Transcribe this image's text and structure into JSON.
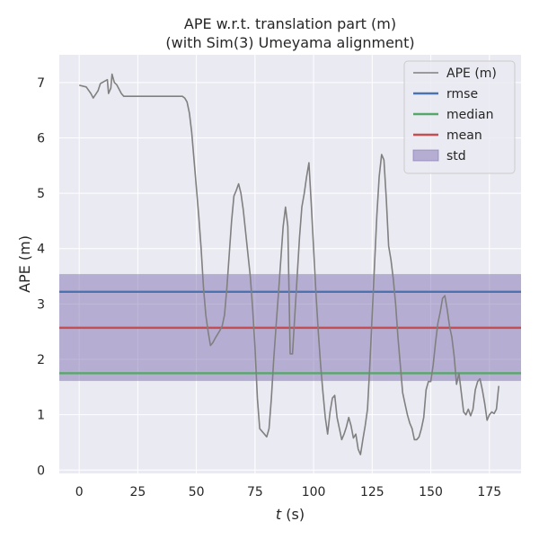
{
  "chart_data": {
    "type": "line",
    "title": [
      "APE w.r.t. translation part (m)",
      "(with Sim(3) Umeyama alignment)"
    ],
    "xlabel_var": "t",
    "xlabel_unit": " (s)",
    "ylabel": "APE (m)",
    "xlim": [
      -8.5,
      188.5
    ],
    "ylim": [
      -0.06,
      7.5
    ],
    "xticks": [
      0,
      25,
      50,
      75,
      100,
      125,
      150,
      175
    ],
    "yticks": [
      0,
      1,
      2,
      3,
      4,
      5,
      6,
      7
    ],
    "grid": true,
    "legend_position": "top-right",
    "series": [
      {
        "name": "APE (m)",
        "color": "#808080",
        "points": [
          [
            0,
            6.95
          ],
          [
            3,
            6.92
          ],
          [
            5,
            6.8
          ],
          [
            6,
            6.72
          ],
          [
            8,
            6.85
          ],
          [
            9,
            6.98
          ],
          [
            12,
            7.05
          ],
          [
            12.5,
            6.8
          ],
          [
            13.5,
            6.9
          ],
          [
            14,
            7.15
          ],
          [
            15,
            7.0
          ],
          [
            16,
            6.96
          ],
          [
            18,
            6.8
          ],
          [
            19,
            6.75
          ],
          [
            25,
            6.75
          ],
          [
            35,
            6.75
          ],
          [
            43,
            6.75
          ],
          [
            44,
            6.75
          ],
          [
            45,
            6.72
          ],
          [
            46,
            6.65
          ],
          [
            47,
            6.45
          ],
          [
            48,
            6.1
          ],
          [
            49,
            5.6
          ],
          [
            50,
            5.1
          ],
          [
            51,
            4.6
          ],
          [
            52,
            4.0
          ],
          [
            53,
            3.3
          ],
          [
            54,
            2.8
          ],
          [
            55,
            2.5
          ],
          [
            56,
            2.25
          ],
          [
            57,
            2.3
          ],
          [
            58,
            2.38
          ],
          [
            59,
            2.45
          ],
          [
            60,
            2.52
          ],
          [
            61,
            2.6
          ],
          [
            62,
            2.8
          ],
          [
            63,
            3.3
          ],
          [
            64,
            3.9
          ],
          [
            65,
            4.5
          ],
          [
            66,
            4.95
          ],
          [
            67,
            5.05
          ],
          [
            68,
            5.17
          ],
          [
            69,
            5.0
          ],
          [
            70,
            4.7
          ],
          [
            71,
            4.3
          ],
          [
            72,
            3.9
          ],
          [
            73,
            3.5
          ],
          [
            74,
            2.9
          ],
          [
            75,
            2.2
          ],
          [
            76,
            1.3
          ],
          [
            77,
            0.75
          ],
          [
            78,
            0.7
          ],
          [
            79,
            0.65
          ],
          [
            80,
            0.6
          ],
          [
            81,
            0.75
          ],
          [
            82,
            1.3
          ],
          [
            83,
            2.0
          ],
          [
            84,
            2.6
          ],
          [
            85,
            3.2
          ],
          [
            86,
            3.8
          ],
          [
            87,
            4.4
          ],
          [
            88,
            4.75
          ],
          [
            89,
            4.4
          ],
          [
            90,
            2.1
          ],
          [
            91,
            2.1
          ],
          [
            92,
            2.8
          ],
          [
            93,
            3.5
          ],
          [
            94,
            4.2
          ],
          [
            95,
            4.75
          ],
          [
            96,
            5.0
          ],
          [
            97,
            5.3
          ],
          [
            98,
            5.55
          ],
          [
            99,
            4.8
          ],
          [
            100,
            4.0
          ],
          [
            101,
            3.2
          ],
          [
            102,
            2.5
          ],
          [
            103,
            1.9
          ],
          [
            104,
            1.4
          ],
          [
            105,
            0.95
          ],
          [
            106,
            0.65
          ],
          [
            107,
            1.05
          ],
          [
            108,
            1.3
          ],
          [
            109,
            1.35
          ],
          [
            110,
            0.95
          ],
          [
            111,
            0.75
          ],
          [
            112,
            0.55
          ],
          [
            113,
            0.65
          ],
          [
            114,
            0.78
          ],
          [
            115,
            0.95
          ],
          [
            116,
            0.8
          ],
          [
            117,
            0.58
          ],
          [
            118,
            0.65
          ],
          [
            119,
            0.38
          ],
          [
            120,
            0.28
          ],
          [
            121,
            0.55
          ],
          [
            122,
            0.8
          ],
          [
            123,
            1.1
          ],
          [
            124,
            1.9
          ],
          [
            125,
            2.8
          ],
          [
            126,
            3.7
          ],
          [
            127,
            4.6
          ],
          [
            128,
            5.3
          ],
          [
            129,
            5.7
          ],
          [
            130,
            5.6
          ],
          [
            131,
            4.9
          ],
          [
            132,
            4.05
          ],
          [
            133,
            3.8
          ],
          [
            134,
            3.45
          ],
          [
            135,
            3.0
          ],
          [
            136,
            2.4
          ],
          [
            137,
            1.9
          ],
          [
            138,
            1.4
          ],
          [
            139,
            1.2
          ],
          [
            140,
            1.0
          ],
          [
            141,
            0.85
          ],
          [
            142,
            0.75
          ],
          [
            143,
            0.55
          ],
          [
            144,
            0.55
          ],
          [
            145,
            0.6
          ],
          [
            146,
            0.75
          ],
          [
            147,
            0.95
          ],
          [
            148,
            1.45
          ],
          [
            149,
            1.6
          ],
          [
            150,
            1.6
          ],
          [
            151,
            1.9
          ],
          [
            152,
            2.3
          ],
          [
            153,
            2.65
          ],
          [
            154,
            2.85
          ],
          [
            155,
            3.1
          ],
          [
            156,
            3.15
          ],
          [
            157,
            2.9
          ],
          [
            158,
            2.6
          ],
          [
            159,
            2.4
          ],
          [
            160,
            2.05
          ],
          [
            161,
            1.55
          ],
          [
            162,
            1.75
          ],
          [
            163,
            1.4
          ],
          [
            164,
            1.05
          ],
          [
            165,
            1.0
          ],
          [
            166,
            1.1
          ],
          [
            167,
            0.98
          ],
          [
            168,
            1.1
          ],
          [
            169,
            1.45
          ],
          [
            170,
            1.6
          ],
          [
            171,
            1.65
          ],
          [
            172,
            1.45
          ],
          [
            173,
            1.2
          ],
          [
            174,
            0.9
          ],
          [
            175,
            1.0
          ],
          [
            176,
            1.05
          ],
          [
            177,
            1.02
          ],
          [
            178,
            1.1
          ],
          [
            179,
            1.52
          ]
        ]
      }
    ],
    "hlines": [
      {
        "name": "rmse",
        "value": 3.22,
        "color": "#4c72b0"
      },
      {
        "name": "median",
        "value": 1.75,
        "color": "#55a868"
      },
      {
        "name": "mean",
        "value": 2.57,
        "color": "#c44e52"
      }
    ],
    "band": {
      "name": "std",
      "low": 1.61,
      "high": 3.54,
      "color": "#8172b2",
      "opacity": 0.5
    },
    "colors": {
      "background": "#eaeaf2",
      "grid": "#ffffff",
      "text": "#262626"
    }
  }
}
